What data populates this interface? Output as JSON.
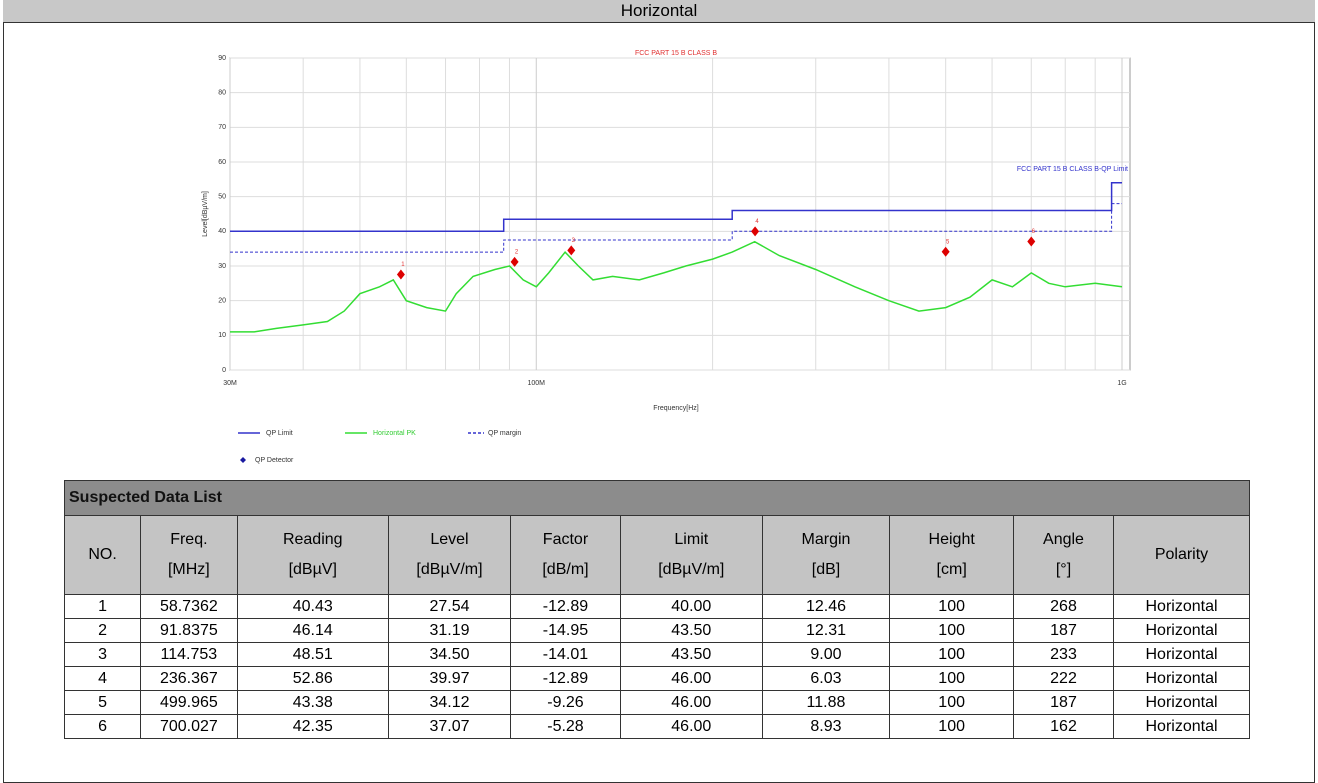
{
  "header": {
    "title": "Horizontal"
  },
  "chart_data": {
    "type": "line",
    "title": "FCC PART 15 B CLASS B",
    "annotation": "FCC PART 15 B CLASS B-QP Limit",
    "xlabel": "Frequency[Hz]",
    "ylabel": "Level[dBµV/m]",
    "xscale": "log",
    "xlim": [
      30,
      1000
    ],
    "xticks": [
      {
        "value": 30,
        "label": "30M"
      },
      {
        "value": 100,
        "label": "100M"
      },
      {
        "value": 1000,
        "label": "1G"
      }
    ],
    "xgrid_minor": [
      40,
      50,
      60,
      70,
      80,
      90,
      200,
      300,
      400,
      500,
      600,
      700,
      800,
      900
    ],
    "ylim": [
      0,
      90
    ],
    "yticks": [
      0,
      10,
      20,
      30,
      40,
      50,
      60,
      70,
      80,
      90
    ],
    "grid": true,
    "series": [
      {
        "name": "QP Limit",
        "color": "#3333cc",
        "x": [
          30,
          88,
          88,
          216,
          216,
          960,
          960,
          1000
        ],
        "values": [
          40,
          40,
          43.5,
          43.5,
          46,
          46,
          54,
          54
        ]
      },
      {
        "name": "Horizontal PK",
        "color": "#33dd33",
        "x": [
          30,
          33,
          36,
          40,
          44,
          47,
          50,
          54,
          57,
          60,
          65,
          70,
          73,
          78,
          85,
          90,
          95,
          100,
          105,
          112,
          118,
          125,
          135,
          150,
          165,
          180,
          200,
          216,
          236,
          260,
          300,
          350,
          400,
          450,
          500,
          550,
          600,
          650,
          700,
          750,
          800,
          900,
          1000
        ],
        "values": [
          11,
          11,
          12,
          13,
          14,
          17,
          22,
          24,
          26,
          20,
          18,
          17,
          22,
          27,
          29,
          30,
          26,
          24,
          28,
          34,
          30,
          26,
          27,
          26,
          28,
          30,
          32,
          34,
          37,
          33,
          29,
          24,
          20,
          17,
          18,
          21,
          26,
          24,
          28,
          25,
          24,
          25,
          24
        ]
      },
      {
        "name": "QP margin",
        "color": "#3333cc",
        "dash": true,
        "x": [
          30,
          88,
          88,
          216,
          216,
          960,
          960,
          1000
        ],
        "values": [
          34,
          34,
          37.5,
          37.5,
          40,
          40,
          48,
          48
        ]
      },
      {
        "name": "QP Detector",
        "color": "#dd0000",
        "legend_color": "#1a1aa0",
        "marker": "diamond",
        "x": [
          58.7362,
          91.8375,
          114.753,
          236.367,
          499.965,
          700.027
        ],
        "values": [
          27.54,
          31.19,
          34.5,
          39.97,
          34.12,
          37.07
        ],
        "labels": [
          "1",
          "2",
          "3",
          "4",
          "5",
          "6"
        ]
      }
    ]
  },
  "table": {
    "title": "Suspected Data List",
    "headers": [
      [
        "NO."
      ],
      [
        "Freq.",
        "[MHz]"
      ],
      [
        "Reading",
        "[dBµV]"
      ],
      [
        "Level",
        "[dBµV/m]"
      ],
      [
        "Factor",
        "[dB/m]"
      ],
      [
        "Limit",
        "[dBµV/m]"
      ],
      [
        "Margin",
        "[dB]"
      ],
      [
        "Height",
        "[cm]"
      ],
      [
        "Angle",
        "[°]"
      ],
      [
        "Polarity"
      ]
    ],
    "rows": [
      [
        "1",
        "58.7362",
        "40.43",
        "27.54",
        "-12.89",
        "40.00",
        "12.46",
        "100",
        "268",
        "Horizontal"
      ],
      [
        "2",
        "91.8375",
        "46.14",
        "31.19",
        "-14.95",
        "43.50",
        "12.31",
        "100",
        "187",
        "Horizontal"
      ],
      [
        "3",
        "114.753",
        "48.51",
        "34.50",
        "-14.01",
        "43.50",
        "9.00",
        "100",
        "233",
        "Horizontal"
      ],
      [
        "4",
        "236.367",
        "52.86",
        "39.97",
        "-12.89",
        "46.00",
        "6.03",
        "100",
        "222",
        "Horizontal"
      ],
      [
        "5",
        "499.965",
        "43.38",
        "34.12",
        "-9.26",
        "46.00",
        "11.88",
        "100",
        "187",
        "Horizontal"
      ],
      [
        "6",
        "700.027",
        "42.35",
        "37.07",
        "-5.28",
        "46.00",
        "8.93",
        "100",
        "162",
        "Horizontal"
      ]
    ]
  }
}
